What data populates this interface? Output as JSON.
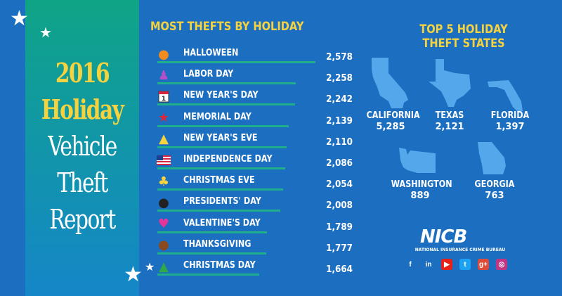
{
  "title": {
    "year": "2016",
    "line2": "Holiday",
    "line3": "Vehicle",
    "line4": "Theft",
    "line5": "Report"
  },
  "list_title": "MOST THEFTS BY HOLIDAY",
  "holidays": [
    {
      "name": "HALLOWEEN",
      "value": "2,578",
      "count": 2578,
      "icon": "jack-o-lantern-icon"
    },
    {
      "name": "LABOR DAY",
      "value": "2,258",
      "count": 2258,
      "icon": "workers-icon"
    },
    {
      "name": "NEW YEAR'S DAY",
      "value": "2,242",
      "count": 2242,
      "icon": "calendar-icon",
      "icon_text": "1"
    },
    {
      "name": "MEMORIAL DAY",
      "value": "2,139",
      "count": 2139,
      "icon": "star-icon"
    },
    {
      "name": "NEW YEAR'S EVE",
      "value": "2,110",
      "count": 2110,
      "icon": "party-hat-icon"
    },
    {
      "name": "INDEPENDENCE DAY",
      "value": "2,086",
      "count": 2086,
      "icon": "us-flag-icon"
    },
    {
      "name": "CHRISTMAS EVE",
      "value": "2,054",
      "count": 2054,
      "icon": "bells-icon"
    },
    {
      "name": "PRESIDENTS' DAY",
      "value": "2,008",
      "count": 2008,
      "icon": "patriotic-badge-icon"
    },
    {
      "name": "VALENTINE'S DAY",
      "value": "1,789",
      "count": 1789,
      "icon": "heart-icon"
    },
    {
      "name": "THANKSGIVING",
      "value": "1,777",
      "count": 1777,
      "icon": "turkey-icon"
    },
    {
      "name": "CHRISTMAS DAY",
      "value": "1,664",
      "count": 1664,
      "icon": "christmas-tree-icon"
    }
  ],
  "states_title": {
    "line1": "TOP 5 HOLIDAY",
    "line2": "THEFT STATES"
  },
  "states": [
    {
      "name": "CALIFORNIA",
      "value": "5,285",
      "icon": "california-map-icon"
    },
    {
      "name": "TEXAS",
      "value": "2,121",
      "icon": "texas-map-icon"
    },
    {
      "name": "FLORIDA",
      "value": "1,397",
      "icon": "florida-map-icon"
    },
    {
      "name": "WASHINGTON",
      "value": "889",
      "icon": "washington-map-icon"
    },
    {
      "name": "GEORGIA",
      "value": "763",
      "icon": "georgia-map-icon"
    }
  ],
  "logo": {
    "main": "NICB",
    "sub": "NATIONAL INSURANCE CRIME BUREAU"
  },
  "social": [
    {
      "icon": "facebook-icon",
      "glyph": "f",
      "color": "#1c6fc0"
    },
    {
      "icon": "linkedin-icon",
      "glyph": "in",
      "color": "#1c6fc0"
    },
    {
      "icon": "youtube-icon",
      "glyph": "▶",
      "color": "#e62117"
    },
    {
      "icon": "twitter-icon",
      "glyph": "t",
      "color": "#1da1f2"
    },
    {
      "icon": "googleplus-icon",
      "glyph": "g+",
      "color": "#dd4b39"
    },
    {
      "icon": "instagram-icon",
      "glyph": "◎",
      "color": "#c13584"
    }
  ],
  "colors": {
    "background": "#1c6fc0",
    "accent": "#f6d33e",
    "bar": "#1faf8b",
    "panel_top": "#10a486"
  }
}
